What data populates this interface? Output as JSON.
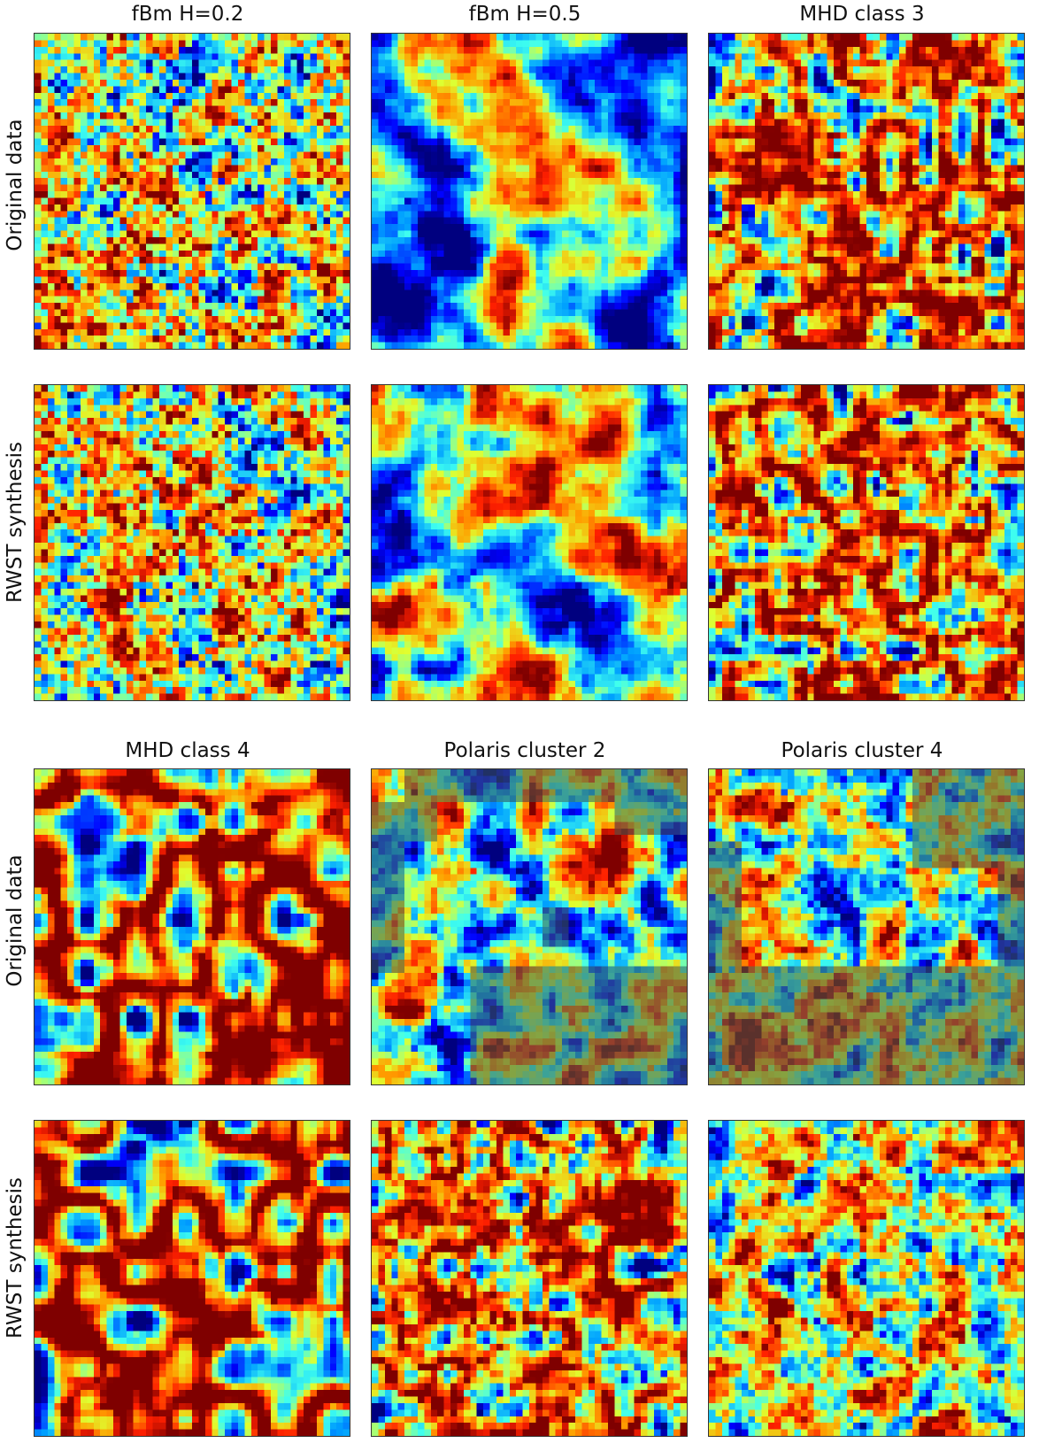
{
  "figure": {
    "blocks": [
      {
        "column_titles": [
          "fBm H=0.2",
          "fBm H=0.5",
          "MHD class 3"
        ],
        "row_labels": [
          "Original data",
          "RWST synthesis"
        ]
      },
      {
        "column_titles": [
          "MHD class 4",
          "Polaris cluster 2",
          "Polaris cluster 4"
        ],
        "row_labels": [
          "Original data",
          "RWST synthesis"
        ]
      }
    ],
    "colormap": "jet",
    "colormap_stops": [
      "#00007f",
      "#0000ff",
      "#00a0ff",
      "#3ffff0",
      "#e0ff30",
      "#ffa000",
      "#ff2000",
      "#7f0000"
    ],
    "mask_overlay_color": "#3c5a50",
    "panels": [
      {
        "id": "fbm02-original",
        "texture": "fine-grain-turbulence",
        "dominant": "green-cyan"
      },
      {
        "id": "fbm05-original",
        "texture": "smooth-fractal-field",
        "dominant": "blue-cyan"
      },
      {
        "id": "mhd3-original",
        "texture": "filamentary-turbulence",
        "dominant": "cyan-blue"
      },
      {
        "id": "fbm02-synthesis",
        "texture": "fine-grain-turbulence",
        "dominant": "green-yellow"
      },
      {
        "id": "fbm05-synthesis",
        "texture": "smooth-fractal-field",
        "dominant": "cyan-blue"
      },
      {
        "id": "mhd3-synthesis",
        "texture": "filamentary-turbulence",
        "dominant": "cyan-green"
      },
      {
        "id": "mhd4-original",
        "texture": "smooth-filamentary-field",
        "dominant": "cyan-blue",
        "masked": false
      },
      {
        "id": "polaris2-original",
        "texture": "dust-emission-map",
        "dominant": "cyan-red",
        "masked": true
      },
      {
        "id": "polaris4-original",
        "texture": "dust-emission-map",
        "dominant": "cyan-yellow",
        "masked": true
      },
      {
        "id": "mhd4-synthesis",
        "texture": "smooth-filamentary-field",
        "dominant": "cyan-blue"
      },
      {
        "id": "polaris2-synthesis",
        "texture": "dust-emission-map",
        "dominant": "cyan-orange"
      },
      {
        "id": "polaris4-synthesis",
        "texture": "dust-emission-map",
        "dominant": "yellow-cyan"
      }
    ]
  }
}
